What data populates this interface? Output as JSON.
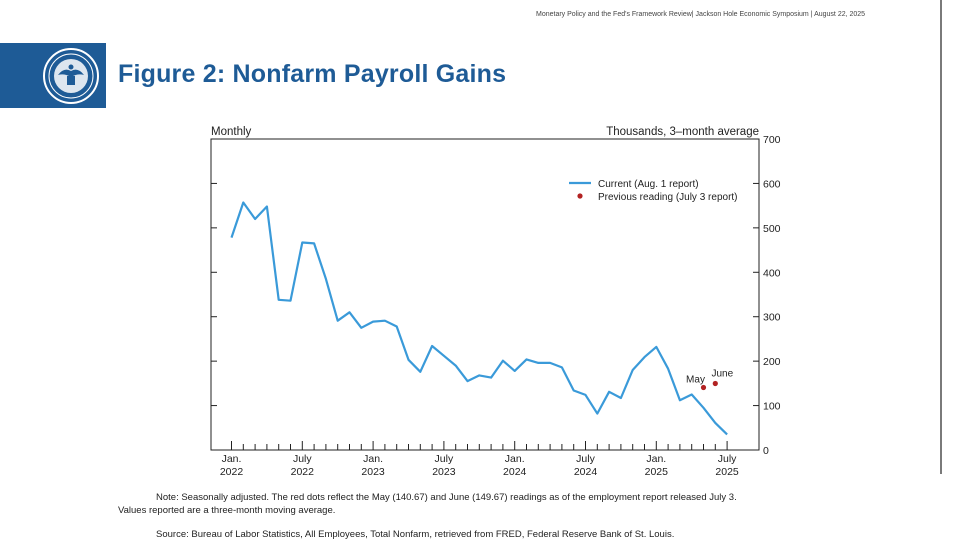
{
  "header": {
    "meta": "Monetary Policy and the Fed's Framework Review| Jackson Hole Economic Symposium | August 22, 2025"
  },
  "figure": {
    "title": "Figure 2: Nonfarm Payroll Gains",
    "seal_icon": "federal-reserve-seal",
    "band_color": "#1e5b96"
  },
  "chart_data": {
    "type": "line",
    "left_label": "Monthly",
    "right_label": "Thousands, 3–month average",
    "ylim": [
      0,
      700
    ],
    "yticks": [
      0,
      100,
      200,
      300,
      400,
      500,
      600,
      700
    ],
    "ytick_labels": [
      "0",
      "100",
      "200",
      "300",
      "400",
      "500",
      "600",
      "700"
    ],
    "x_start": "2022-01",
    "x_end": "2025-07",
    "x_tick_labels": [
      {
        "month": "Jan.",
        "year": "2022",
        "index": 0
      },
      {
        "month": "July",
        "year": "2022",
        "index": 6
      },
      {
        "month": "Jan.",
        "year": "2023",
        "index": 12
      },
      {
        "month": "July",
        "year": "2023",
        "index": 18
      },
      {
        "month": "Jan.",
        "year": "2024",
        "index": 24
      },
      {
        "month": "July",
        "year": "2024",
        "index": 30
      },
      {
        "month": "Jan.",
        "year": "2025",
        "index": 36
      },
      {
        "month": "July",
        "year": "2025",
        "index": 42
      }
    ],
    "series": [
      {
        "name": "Current (Aug. 1 report)",
        "color": "#3a9ad9",
        "values": [
          478,
          557,
          520,
          548,
          338,
          336,
          467,
          465,
          385,
          291,
          310,
          275,
          289,
          291,
          278,
          203,
          176,
          234,
          212,
          190,
          155,
          168,
          163,
          201,
          178,
          204,
          196,
          196,
          186,
          134,
          124,
          82,
          131,
          117,
          180,
          209,
          232,
          183,
          112,
          125,
          95,
          61,
          35
        ]
      }
    ],
    "previous_readings": {
      "name": "Previous reading (July 3 report)",
      "color": "#b22222",
      "points": [
        {
          "label": "May",
          "index": 40,
          "value": 140.67
        },
        {
          "label": "June",
          "index": 41,
          "value": 149.67
        }
      ]
    },
    "legend_position": "top-right",
    "grid": false
  },
  "footer": {
    "note_line1": "Note: Seasonally adjusted. The red dots reflect the May (140.67) and June (149.67) readings as of the employment report released July 3.",
    "note_line2": "Values reported are a three-month moving average.",
    "source": "Source: Bureau of Labor Statistics, All Employees, Total Nonfarm, retrieved from FRED, Federal Reserve Bank of St. Louis."
  }
}
